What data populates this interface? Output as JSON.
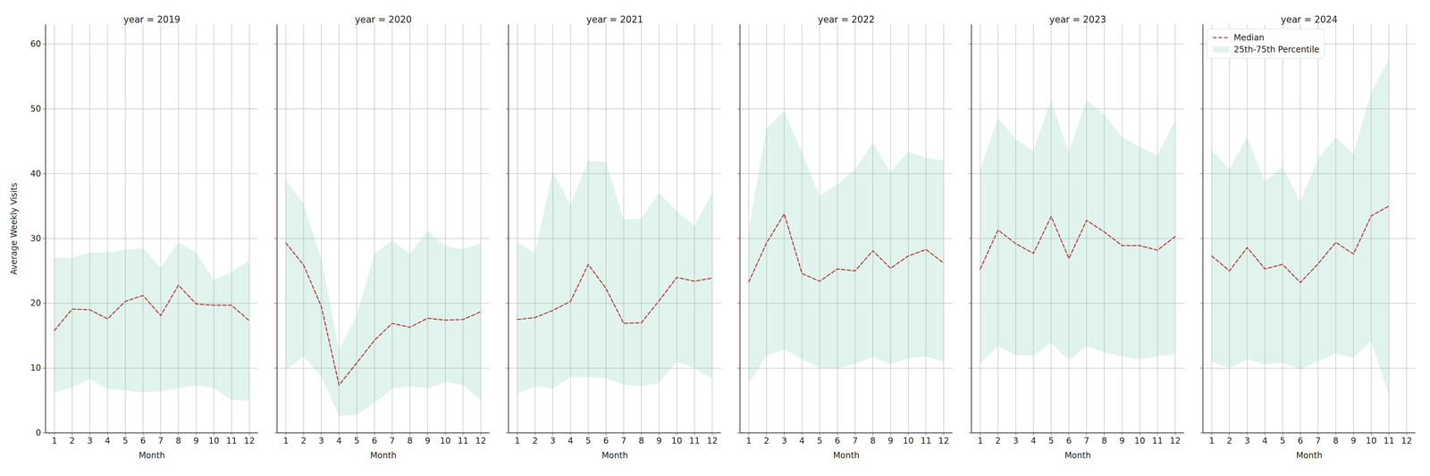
{
  "chart_data": [
    {
      "type": "line",
      "title": "year = 2019",
      "xlabel": "Month",
      "ylabel": "Average Weekly Visits",
      "x": [
        1,
        2,
        3,
        4,
        5,
        6,
        7,
        8,
        9,
        10,
        11,
        12
      ],
      "xlim": [
        0.5,
        12.5
      ],
      "xticks": [
        1,
        2,
        3,
        4,
        5,
        6,
        7,
        8,
        9,
        10,
        11,
        12
      ],
      "ylim": [
        0,
        63
      ],
      "yticks": [
        0,
        10,
        20,
        30,
        40,
        50,
        60
      ],
      "grid": true,
      "series": [
        {
          "name": "Median",
          "type": "line",
          "color": "#c0393b",
          "line_style": "dashed",
          "values": [
            15.8,
            19.1,
            19.0,
            17.6,
            20.3,
            21.2,
            18.1,
            22.8,
            19.9,
            19.7,
            19.7,
            17.3
          ]
        },
        {
          "name": "25th-75th Percentile",
          "type": "area",
          "color": "#66c2a5",
          "low": [
            6.2,
            7.0,
            8.3,
            6.8,
            6.5,
            6.2,
            6.4,
            6.9,
            7.3,
            6.9,
            5.1,
            4.9
          ],
          "high": [
            27.0,
            27.0,
            27.8,
            27.8,
            28.2,
            28.5,
            25.4,
            29.4,
            27.8,
            23.6,
            24.8,
            26.5
          ]
        }
      ]
    },
    {
      "type": "line",
      "title": "year = 2020",
      "xlabel": "Month",
      "x": [
        1,
        2,
        3,
        4,
        5,
        6,
        7,
        8,
        9,
        10,
        11,
        12
      ],
      "xlim": [
        0.5,
        12.5
      ],
      "xticks": [
        1,
        2,
        3,
        4,
        5,
        6,
        7,
        8,
        9,
        10,
        11,
        12
      ],
      "ylim": [
        0,
        63
      ],
      "yticks": [
        0,
        10,
        20,
        30,
        40,
        50,
        60
      ],
      "grid": true,
      "tick_labels": "x",
      "series": [
        {
          "name": "Median",
          "type": "line",
          "color": "#c0393b",
          "line_style": "dashed",
          "values": [
            29.3,
            25.9,
            19.5,
            7.4,
            10.8,
            14.3,
            16.9,
            16.3,
            17.7,
            17.4,
            17.5,
            18.7
          ]
        },
        {
          "name": "25th-75th Percentile",
          "type": "area",
          "color": "#66c2a5",
          "low": [
            9.6,
            11.8,
            8.8,
            2.6,
            2.8,
            4.5,
            6.8,
            7.2,
            6.9,
            7.8,
            7.4,
            5.0
          ],
          "high": [
            39.0,
            35.3,
            27.0,
            12.8,
            18.0,
            27.5,
            29.7,
            27.6,
            31.1,
            28.8,
            28.3,
            29.2
          ]
        }
      ]
    },
    {
      "type": "line",
      "title": "year = 2021",
      "xlabel": "Month",
      "x": [
        1,
        2,
        3,
        4,
        5,
        6,
        7,
        8,
        9,
        10,
        11,
        12
      ],
      "xlim": [
        0.5,
        12.5
      ],
      "xticks": [
        1,
        2,
        3,
        4,
        5,
        6,
        7,
        8,
        9,
        10,
        11,
        12
      ],
      "ylim": [
        0,
        63
      ],
      "yticks": [
        0,
        10,
        20,
        30,
        40,
        50,
        60
      ],
      "grid": true,
      "tick_labels": "x",
      "series": [
        {
          "name": "Median",
          "type": "line",
          "color": "#c0393b",
          "line_style": "dashed",
          "values": [
            17.5,
            17.8,
            18.9,
            20.3,
            26.0,
            22.3,
            16.9,
            17.0,
            20.4,
            24.0,
            23.4,
            23.9
          ]
        },
        {
          "name": "25th-75th Percentile",
          "type": "area",
          "color": "#66c2a5",
          "low": [
            6.0,
            7.2,
            6.8,
            8.6,
            8.6,
            8.4,
            7.4,
            7.2,
            7.7,
            11.0,
            10.0,
            8.4
          ],
          "high": [
            29.4,
            27.7,
            40.2,
            35.2,
            41.9,
            41.8,
            32.9,
            33.0,
            37.0,
            34.2,
            31.9,
            37.0
          ]
        }
      ]
    },
    {
      "type": "line",
      "title": "year = 2022",
      "xlabel": "Month",
      "x": [
        1,
        2,
        3,
        4,
        5,
        6,
        7,
        8,
        9,
        10,
        11,
        12
      ],
      "xlim": [
        0.5,
        12.5
      ],
      "xticks": [
        1,
        2,
        3,
        4,
        5,
        6,
        7,
        8,
        9,
        10,
        11,
        12
      ],
      "ylim": [
        0,
        63
      ],
      "yticks": [
        0,
        10,
        20,
        30,
        40,
        50,
        60
      ],
      "grid": true,
      "tick_labels": "x",
      "series": [
        {
          "name": "Median",
          "type": "line",
          "color": "#c0393b",
          "line_style": "dashed",
          "values": [
            23.3,
            29.3,
            33.8,
            24.6,
            23.4,
            25.3,
            25.0,
            28.1,
            25.4,
            27.3,
            28.3,
            26.2
          ]
        },
        {
          "name": "25th-75th Percentile",
          "type": "area",
          "color": "#66c2a5",
          "low": [
            7.6,
            11.9,
            12.9,
            11.4,
            10.0,
            10.0,
            10.6,
            11.7,
            10.6,
            11.5,
            11.8,
            11.0
          ],
          "high": [
            31.3,
            46.9,
            49.6,
            43.3,
            36.5,
            38.3,
            40.6,
            44.7,
            40.2,
            43.4,
            42.4,
            42.0
          ]
        }
      ]
    },
    {
      "type": "line",
      "title": "year = 2023",
      "xlabel": "Month",
      "x": [
        1,
        2,
        3,
        4,
        5,
        6,
        7,
        8,
        9,
        10,
        11,
        12
      ],
      "xlim": [
        0.5,
        12.5
      ],
      "xticks": [
        1,
        2,
        3,
        4,
        5,
        6,
        7,
        8,
        9,
        10,
        11,
        12
      ],
      "ylim": [
        0,
        63
      ],
      "yticks": [
        0,
        10,
        20,
        30,
        40,
        50,
        60
      ],
      "grid": true,
      "tick_labels": "x",
      "series": [
        {
          "name": "Median",
          "type": "line",
          "color": "#c0393b",
          "line_style": "dashed",
          "values": [
            25.3,
            31.3,
            29.2,
            27.7,
            33.4,
            26.9,
            32.8,
            31.0,
            28.9,
            28.9,
            28.2,
            30.3
          ]
        },
        {
          "name": "25th-75th Percentile",
          "type": "area",
          "color": "#66c2a5",
          "low": [
            10.6,
            13.4,
            12.0,
            11.9,
            13.9,
            11.2,
            13.4,
            12.4,
            11.8,
            11.3,
            11.8,
            12.2
          ],
          "high": [
            40.6,
            48.5,
            45.3,
            43.5,
            51.3,
            43.2,
            51.3,
            49.1,
            45.6,
            44.1,
            42.8,
            48.1
          ]
        }
      ]
    },
    {
      "type": "line",
      "title": "year = 2024",
      "xlabel": "Month",
      "x": [
        1,
        2,
        3,
        4,
        5,
        6,
        7,
        8,
        9,
        10,
        11,
        12
      ],
      "xlim": [
        0.5,
        12.5
      ],
      "xticks": [
        1,
        2,
        3,
        4,
        5,
        6,
        7,
        8,
        9,
        10,
        11,
        12
      ],
      "ylim": [
        0,
        63
      ],
      "yticks": [
        0,
        10,
        20,
        30,
        40,
        50,
        60
      ],
      "grid": true,
      "tick_labels": "x",
      "legend": "upper left",
      "series": [
        {
          "name": "Median",
          "type": "line",
          "color": "#c0393b",
          "line_style": "dashed",
          "values": [
            27.3,
            25.0,
            28.6,
            25.3,
            26.0,
            23.2,
            26.1,
            29.4,
            27.6,
            33.5,
            35.0,
            null
          ]
        },
        {
          "name": "25th-75th Percentile",
          "type": "area",
          "color": "#66c2a5",
          "low": [
            11.0,
            10.0,
            11.4,
            10.5,
            10.8,
            9.8,
            11.0,
            12.2,
            11.6,
            14.2,
            5.9,
            null
          ],
          "high": [
            43.7,
            40.6,
            45.6,
            38.7,
            41.0,
            35.6,
            42.2,
            45.5,
            43.0,
            52.5,
            57.6,
            null
          ]
        }
      ]
    }
  ]
}
